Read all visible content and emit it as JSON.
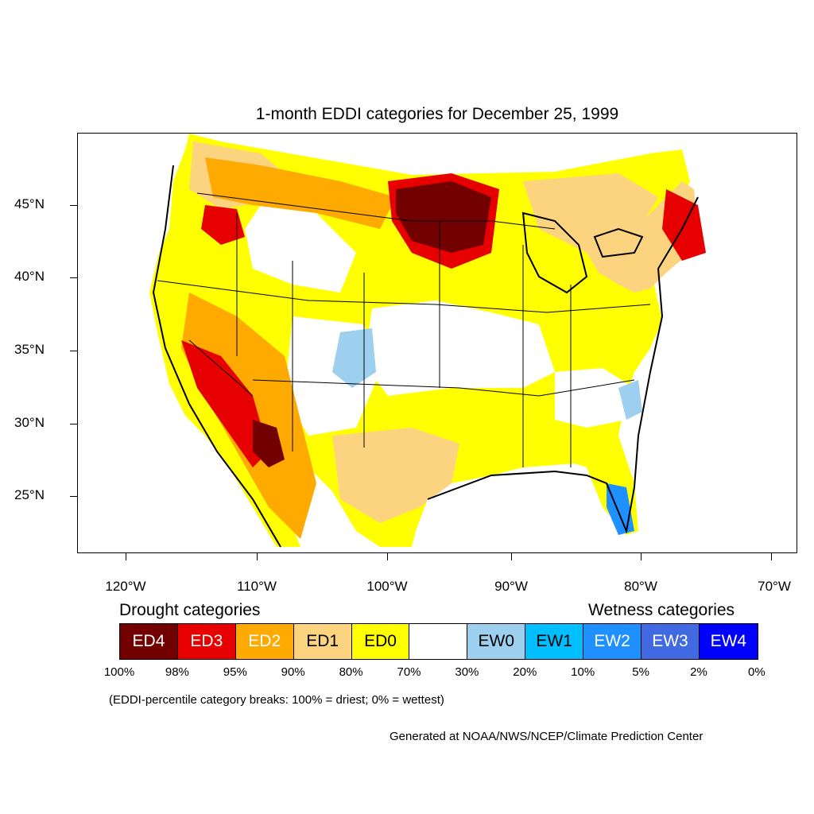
{
  "title": "1-month EDDI categories for December 25, 1999",
  "lat_labels": [
    "45°N",
    "40°N",
    "35°N",
    "30°N",
    "25°N"
  ],
  "lon_labels": [
    "120°W",
    "110°W",
    "100°W",
    "90°W",
    "80°W",
    "70°W"
  ],
  "legend": {
    "drought_heading": "Drought categories",
    "wetness_heading": "Wetness categories",
    "categories": [
      {
        "label": "ED4",
        "color": "#730000"
      },
      {
        "label": "ED3",
        "color": "#e60000"
      },
      {
        "label": "ED2",
        "color": "#ffaa00"
      },
      {
        "label": "ED1",
        "color": "#fcd37f"
      },
      {
        "label": "ED0",
        "color": "#ffff00"
      },
      {
        "label": "",
        "color": "#ffffff"
      },
      {
        "label": "EW0",
        "color": "#9dcfef"
      },
      {
        "label": "EW1",
        "color": "#00bfff"
      },
      {
        "label": "EW2",
        "color": "#1e90ff"
      },
      {
        "label": "EW3",
        "color": "#4169e1"
      },
      {
        "label": "EW4",
        "color": "#0000ff"
      }
    ],
    "breaks": [
      "100%",
      "98%",
      "95%",
      "90%",
      "80%",
      "70%",
      "30%",
      "20%",
      "10%",
      "5%",
      "2%",
      "0%"
    ],
    "note": "(EDDI-percentile category breaks: 100% = driest; 0% = wettest)"
  },
  "credit": "Generated at NOAA/NWS/NCEP/Climate Prediction Center"
}
